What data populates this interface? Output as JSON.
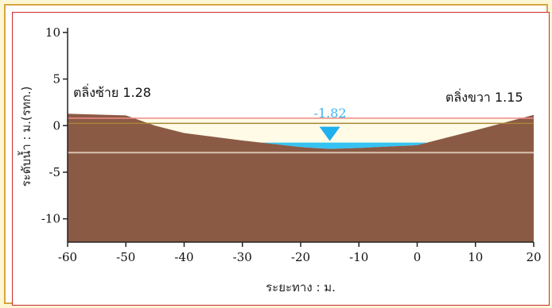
{
  "colors": {
    "ground": "#8b5a45",
    "water": "#36c3f3",
    "water_marker": "#1fb0ee",
    "bank_line": "#f08a8a",
    "bank_line_low": "#a8863a",
    "reference_line": "#d9c4b2",
    "background_band": "#fff6d4",
    "frame_border": "#d8a640"
  },
  "chart_data": {
    "type": "area",
    "xlabel": "ระยะทาง : ม.",
    "ylabel": "ระดับน้ำ : ม.(รทก.)",
    "xlim": [
      -60,
      20
    ],
    "ylim": [
      -12.5,
      10.5
    ],
    "x_ticks": [
      -60,
      -50,
      -40,
      -30,
      -20,
      -10,
      0,
      10,
      20
    ],
    "y_ticks": [
      10,
      5,
      0,
      -5,
      -10
    ],
    "ground_profile": {
      "x": [
        -60,
        -50,
        -45,
        -40,
        -30,
        -20,
        -15,
        -10,
        0,
        10,
        20
      ],
      "y": [
        1.28,
        1.1,
        0,
        -0.8,
        -1.6,
        -2.3,
        -2.5,
        -2.4,
        -2.1,
        -0.5,
        1.15
      ]
    },
    "water_level": -1.82,
    "water_level_label": "-1.82",
    "left_bank": {
      "label": "ตลิ่งซ้าย 1.28",
      "value": 1.28
    },
    "right_bank": {
      "label": "ตลิ่งขวา 1.15",
      "value": 1.15
    },
    "reference_lines": [
      {
        "name": "bank-level-line",
        "y": 0.8
      },
      {
        "name": "lower-bank-line",
        "y": 0.25
      },
      {
        "name": "base-reference-line",
        "y": -2.9
      }
    ],
    "grid": false
  }
}
